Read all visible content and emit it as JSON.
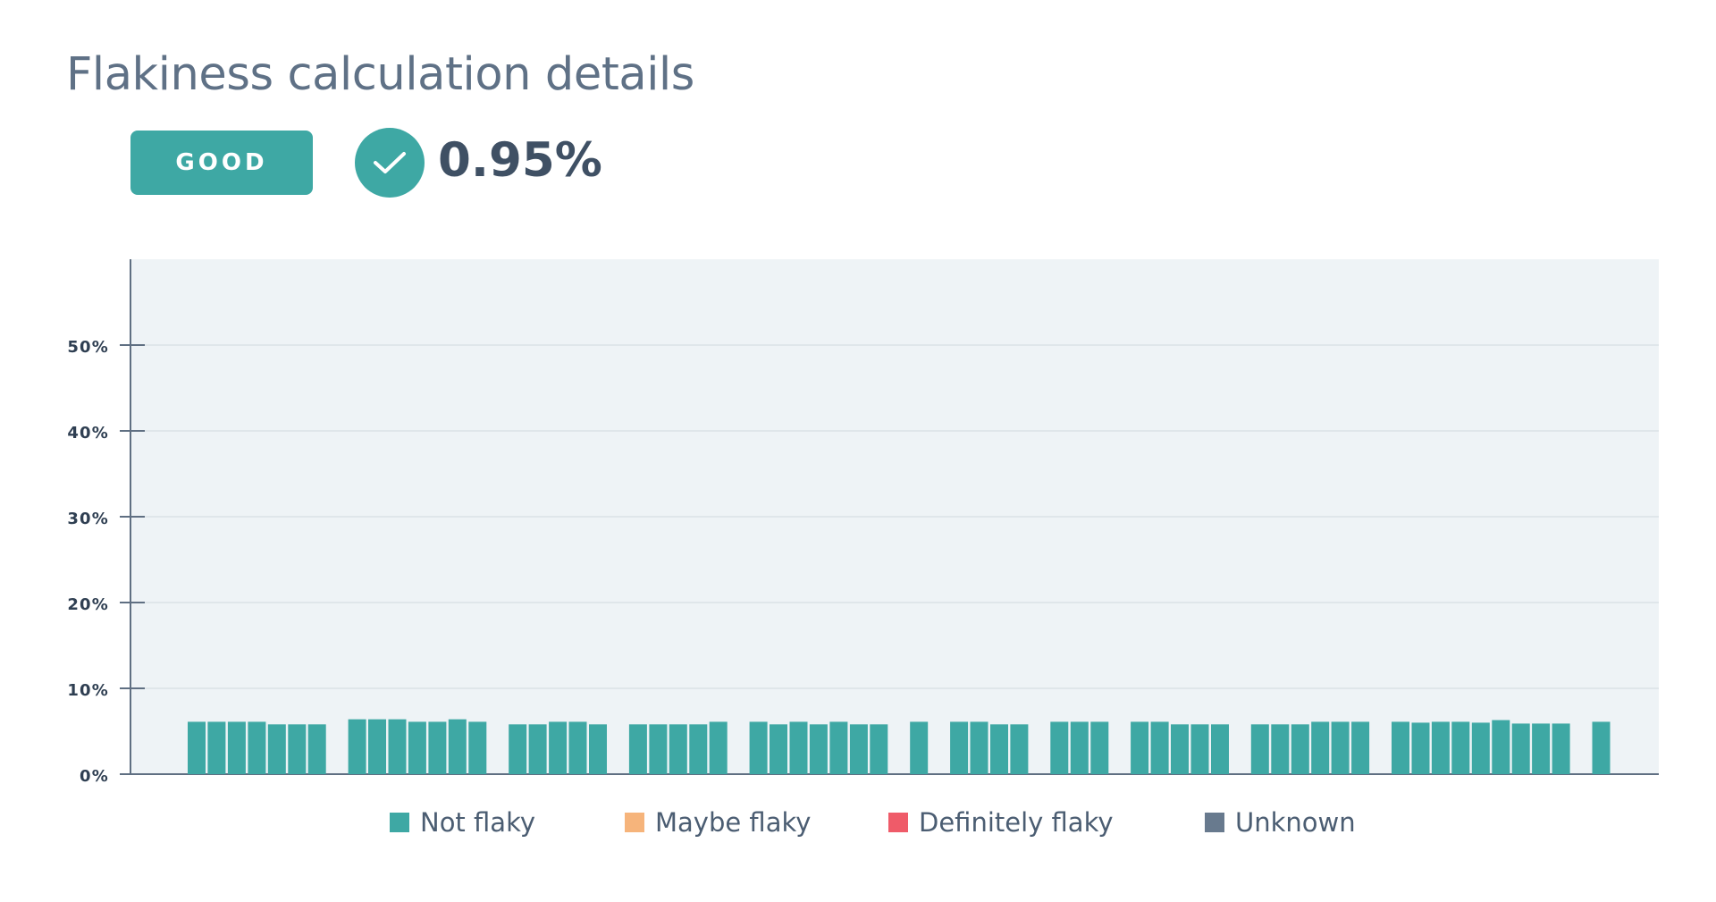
{
  "title": "Flakiness calculation details",
  "status": {
    "label": "GOOD",
    "icon": "check-icon",
    "percentage": "0.95%"
  },
  "colors": {
    "accent": "#3ea8a4",
    "title": "#5f7186",
    "plot_background": "#eef3f6",
    "axis": "#5f6f82",
    "grid": "#d6dde4"
  },
  "chart_data": {
    "type": "bar",
    "stacked": true,
    "title": "",
    "xlabel": "",
    "ylabel": "",
    "ylim": [
      0,
      60
    ],
    "yticks": [
      0,
      10,
      20,
      30,
      40,
      50
    ],
    "ytick_labels": [
      "0%",
      "10%",
      "20%",
      "30%",
      "40%",
      "50%"
    ],
    "grid": true,
    "legend_position": "bottom",
    "series": [
      {
        "name": "Not flaky",
        "color": "#3ea8a4",
        "values": [
          6.1,
          6.1,
          6.1,
          6.1,
          5.8,
          5.8,
          5.8,
          null,
          6.4,
          6.4,
          6.4,
          6.1,
          6.1,
          6.4,
          6.1,
          null,
          5.8,
          5.8,
          6.1,
          6.1,
          5.8,
          null,
          5.8,
          5.8,
          5.8,
          5.8,
          6.1,
          null,
          6.1,
          5.8,
          6.1,
          5.8,
          6.1,
          5.8,
          5.8,
          null,
          6.1,
          null,
          6.1,
          6.1,
          5.8,
          5.8,
          null,
          6.1,
          6.1,
          6.1,
          null,
          6.1,
          6.1,
          5.8,
          5.8,
          5.8,
          null,
          5.8,
          5.8,
          5.8,
          6.1,
          6.1,
          6.1,
          null,
          6.1,
          6.0,
          6.1,
          6.1,
          6.0,
          6.3,
          5.9,
          5.9,
          5.9,
          null,
          6.1
        ]
      },
      {
        "name": "Maybe flaky",
        "color": "#f6b47b",
        "values": []
      },
      {
        "name": "Definitely flaky",
        "color": "#ef5b69",
        "values": []
      },
      {
        "name": "Unknown",
        "color": "#687a8e",
        "values": []
      }
    ]
  }
}
